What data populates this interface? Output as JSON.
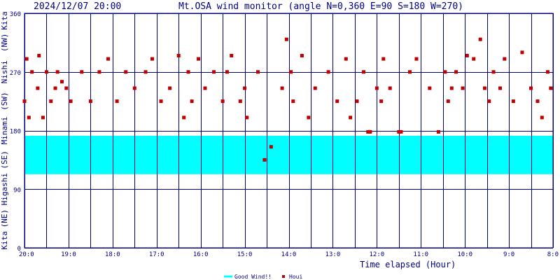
{
  "timestamp": "2024/12/07 20:00",
  "title": "Mt.OSA wind monitor (angle N=0,360 E=90 S=180 W=270)",
  "xlabel": "Time elapsed (Hour)",
  "colors": {
    "frame": "#000080",
    "good_band": "#00ffff",
    "points": "#c00000",
    "background": "#ffffff"
  },
  "chart_data": {
    "type": "scatter",
    "title": "Mt.OSA wind monitor (angle N=0,360 E=90 S=180 W=270)",
    "xlabel": "Time elapsed (Hour)",
    "ylabel": "",
    "ylim": [
      0,
      360
    ],
    "y_ticks": [
      0,
      90,
      180,
      270,
      360
    ],
    "y_tick_labels": [
      "0",
      "90",
      "180",
      "270",
      "360"
    ],
    "direction_labels": [
      {
        "text": "Kita",
        "from": 0,
        "to": 22.5
      },
      {
        "text": "(NE)",
        "from": 22.5,
        "to": 67.5
      },
      {
        "text": "Higashi",
        "from": 67.5,
        "to": 112.5
      },
      {
        "text": "(SE)",
        "from": 112.5,
        "to": 157.5
      },
      {
        "text": "Minami",
        "from": 157.5,
        "to": 202.5
      },
      {
        "text": "(SW)",
        "from": 202.5,
        "to": 247.5
      },
      {
        "text": "Nishi",
        "from": 247.5,
        "to": 292.5
      },
      {
        "text": "(NW)",
        "from": 292.5,
        "to": 337.5
      },
      {
        "text": "Kita",
        "from": 337.5,
        "to": 360
      }
    ],
    "x_ticks": [
      0,
      1,
      2,
      3,
      4,
      5,
      6,
      7,
      8,
      9,
      10,
      11,
      12
    ],
    "x_tick_labels": [
      "20:0",
      "19:0",
      "18:0",
      "17:0",
      "16:0",
      "15:0",
      "14:0",
      "13:0",
      "12:0",
      "11:0",
      "10:0",
      "9:0",
      "8:0"
    ],
    "xlim": [
      0,
      12
    ],
    "grid": true,
    "legend": "bottom-center",
    "good_wind_range": [
      113,
      172
    ],
    "series": [
      {
        "name": "Good Wind!!",
        "kind": "band",
        "range": [
          113,
          172
        ]
      },
      {
        "name": "Houi",
        "kind": "points",
        "x": [
          0.0,
          0.05,
          0.1,
          0.17,
          0.3,
          0.33,
          0.42,
          0.5,
          0.6,
          0.7,
          0.75,
          0.85,
          0.95,
          1.05,
          1.3,
          1.5,
          1.7,
          1.9,
          2.1,
          2.3,
          2.5,
          2.75,
          2.9,
          3.1,
          3.3,
          3.5,
          3.62,
          3.72,
          3.8,
          3.95,
          4.1,
          4.3,
          4.5,
          4.6,
          4.7,
          4.9,
          5.0,
          5.05,
          5.3,
          5.45,
          5.6,
          5.85,
          5.95,
          6.05,
          6.1,
          6.3,
          6.45,
          6.6,
          6.9,
          7.1,
          7.3,
          7.4,
          7.55,
          7.7,
          7.8,
          7.85,
          8.0,
          8.1,
          8.15,
          8.3,
          8.5,
          8.55,
          8.75,
          8.9,
          9.2,
          9.4,
          9.55,
          9.62,
          9.7,
          9.8,
          9.95,
          10.05,
          10.2,
          10.35,
          10.45,
          10.55,
          10.65,
          10.8,
          10.9,
          11.1,
          11.3,
          11.5,
          11.65,
          11.75,
          11.88,
          11.95
        ],
        "y": [
          225,
          290,
          200,
          270,
          245,
          295,
          200,
          270,
          225,
          245,
          270,
          255,
          245,
          225,
          270,
          225,
          270,
          290,
          225,
          270,
          245,
          270,
          290,
          225,
          245,
          295,
          200,
          270,
          225,
          290,
          245,
          270,
          225,
          270,
          295,
          225,
          245,
          200,
          270,
          135,
          155,
          245,
          320,
          270,
          225,
          295,
          200,
          245,
          270,
          225,
          290,
          200,
          225,
          270,
          178,
          178,
          245,
          225,
          290,
          245,
          178,
          178,
          270,
          290,
          245,
          178,
          270,
          225,
          245,
          270,
          245,
          295,
          290,
          320,
          245,
          225,
          270,
          245,
          290,
          225,
          300,
          245,
          225,
          200,
          270,
          245
        ]
      }
    ]
  }
}
